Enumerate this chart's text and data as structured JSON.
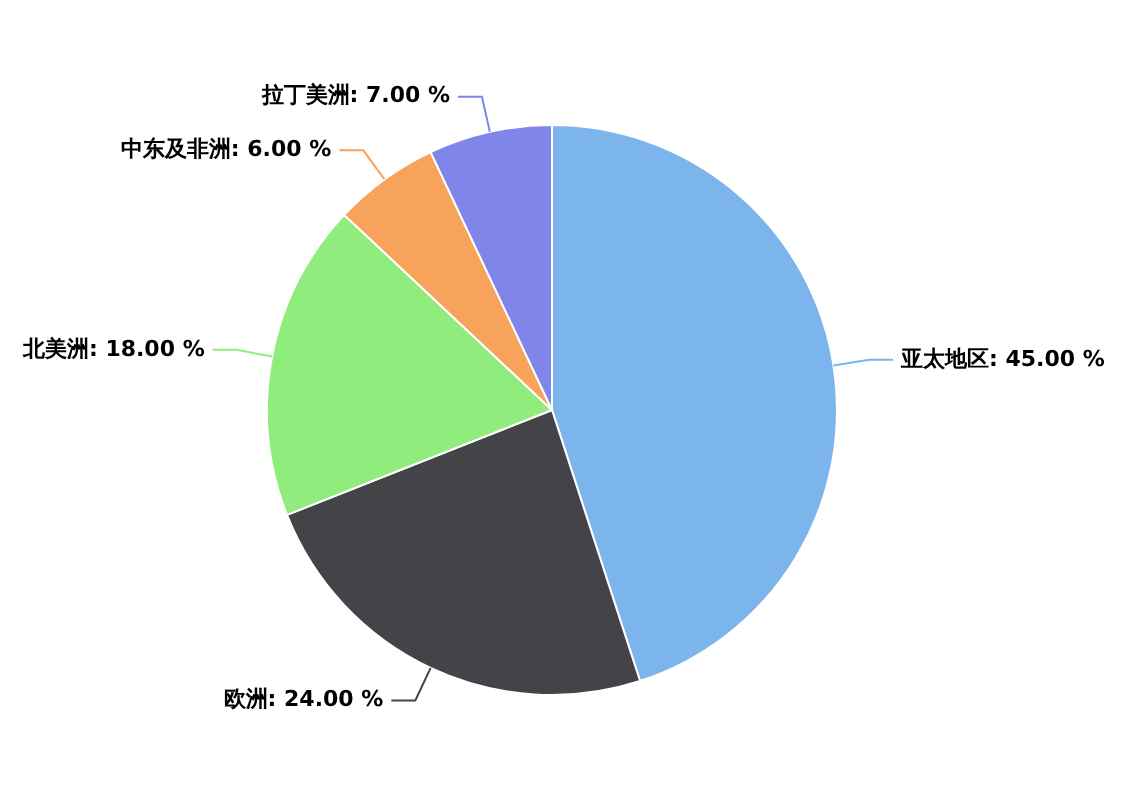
{
  "chart_data": {
    "type": "pie",
    "categories": [
      "亚太地区",
      "欧洲",
      "北美洲",
      "中东及非洲",
      "拉丁美洲"
    ],
    "values": [
      45,
      24,
      18,
      6,
      7
    ],
    "colors": [
      "#7cb5ec",
      "#434348",
      "#90ed7d",
      "#f7a35c",
      "#8085e9"
    ],
    "value_labels": [
      "45.00 %",
      "24.00 %",
      "18.00 %",
      "6.00 %",
      "7.00 %"
    ],
    "legend": false
  }
}
